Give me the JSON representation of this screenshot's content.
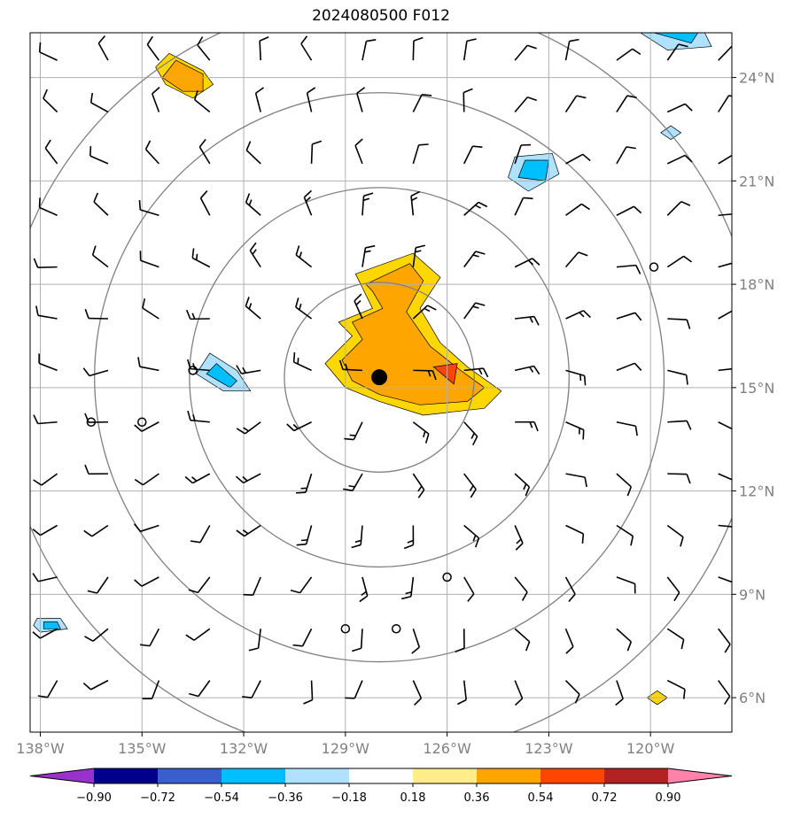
{
  "title": "2024080500 F012",
  "map": {
    "lon_range": [
      -138.3,
      -117.6
    ],
    "lat_range": [
      5.0,
      25.3
    ],
    "lon_ticks": [
      {
        "value": -138,
        "label": "138°W"
      },
      {
        "value": -135,
        "label": "135°W"
      },
      {
        "value": -132,
        "label": "132°W"
      },
      {
        "value": -129,
        "label": "129°W"
      },
      {
        "value": -126,
        "label": "126°W"
      },
      {
        "value": -123,
        "label": "123°W"
      },
      {
        "value": -120,
        "label": "120°W"
      }
    ],
    "lat_ticks": [
      {
        "value": 6,
        "label": "6°N"
      },
      {
        "value": 9,
        "label": "9°N"
      },
      {
        "value": 12,
        "label": "12°N"
      },
      {
        "value": 15,
        "label": "15°N"
      },
      {
        "value": 18,
        "label": "18°N"
      },
      {
        "value": 21,
        "label": "21°N"
      },
      {
        "value": 24,
        "label": "24°N"
      }
    ],
    "grid_color": "#b0b0b0",
    "range_ring_color": "#808080",
    "storm_center": {
      "lon": -128.0,
      "lat": 15.3
    },
    "range_rings_deg": [
      2.8,
      5.6,
      8.4,
      11.2
    ],
    "filled_regions": [
      {
        "level": 0.36,
        "color": "#ffd700",
        "points": [
          [
            -128.7,
            18.3
          ],
          [
            -127.0,
            18.9
          ],
          [
            -126.2,
            18.2
          ],
          [
            -126.8,
            17.3
          ],
          [
            -126.2,
            16.3
          ],
          [
            -125.4,
            15.6
          ],
          [
            -124.4,
            14.9
          ],
          [
            -124.9,
            14.4
          ],
          [
            -126.7,
            14.2
          ],
          [
            -128.0,
            14.6
          ],
          [
            -129.0,
            15.0
          ],
          [
            -129.6,
            15.7
          ],
          [
            -128.8,
            16.5
          ],
          [
            -129.2,
            16.9
          ],
          [
            -128.2,
            17.3
          ],
          [
            -128.5,
            17.9
          ]
        ]
      },
      {
        "level": 0.54,
        "color": "#ffa500",
        "points": [
          [
            -128.4,
            18.0
          ],
          [
            -127.1,
            18.6
          ],
          [
            -126.7,
            18.1
          ],
          [
            -127.2,
            17.2
          ],
          [
            -126.5,
            16.2
          ],
          [
            -125.6,
            15.5
          ],
          [
            -124.9,
            15.0
          ],
          [
            -125.4,
            14.6
          ],
          [
            -126.8,
            14.5
          ],
          [
            -128.0,
            14.8
          ],
          [
            -128.8,
            15.2
          ],
          [
            -129.1,
            15.8
          ],
          [
            -128.5,
            16.4
          ],
          [
            -128.8,
            16.9
          ],
          [
            -127.9,
            17.3
          ],
          [
            -128.2,
            17.8
          ]
        ]
      },
      {
        "level": 0.72,
        "color": "#ff4500",
        "points": [
          [
            -126.4,
            15.6
          ],
          [
            -125.7,
            15.7
          ],
          [
            -125.8,
            15.1
          ]
        ]
      },
      {
        "level": 0.36,
        "color": "#ffd700",
        "points": [
          [
            -134.2,
            24.7
          ],
          [
            -133.2,
            24.2
          ],
          [
            -132.9,
            23.8
          ],
          [
            -133.5,
            23.4
          ],
          [
            -134.3,
            23.8
          ],
          [
            -134.6,
            24.3
          ]
        ]
      },
      {
        "level": 0.54,
        "color": "#ffa500",
        "points": [
          [
            -134.0,
            24.5
          ],
          [
            -133.2,
            24.1
          ],
          [
            -133.2,
            23.6
          ],
          [
            -133.8,
            23.6
          ],
          [
            -134.4,
            24.0
          ]
        ]
      },
      {
        "level": 0.36,
        "color": "#ffd700",
        "points": [
          [
            -119.8,
            6.2
          ],
          [
            -119.5,
            6.0
          ],
          [
            -119.8,
            5.8
          ],
          [
            -120.1,
            6.0
          ]
        ]
      },
      {
        "level": -0.18,
        "color": "#b0e2ff",
        "points": [
          [
            -133.0,
            16.0
          ],
          [
            -132.2,
            15.5
          ],
          [
            -131.8,
            14.9
          ],
          [
            -132.6,
            14.9
          ],
          [
            -133.4,
            15.4
          ]
        ]
      },
      {
        "level": -0.36,
        "color": "#00bfff",
        "points": [
          [
            -132.8,
            15.7
          ],
          [
            -132.2,
            15.2
          ],
          [
            -132.4,
            15.0
          ],
          [
            -133.1,
            15.4
          ]
        ]
      },
      {
        "level": -0.18,
        "color": "#b0e2ff",
        "points": [
          [
            -124.0,
            21.7
          ],
          [
            -122.9,
            21.8
          ],
          [
            -122.7,
            21.2
          ],
          [
            -123.6,
            20.7
          ],
          [
            -124.2,
            21.1
          ]
        ]
      },
      {
        "level": -0.36,
        "color": "#00bfff",
        "points": [
          [
            -123.7,
            21.6
          ],
          [
            -123.0,
            21.6
          ],
          [
            -123.1,
            21.0
          ],
          [
            -123.9,
            21.1
          ]
        ]
      },
      {
        "level": -0.18,
        "color": "#b0e2ff",
        "points": [
          [
            -120.3,
            25.3
          ],
          [
            -118.4,
            25.3
          ],
          [
            -118.2,
            24.9
          ],
          [
            -119.5,
            24.8
          ]
        ]
      },
      {
        "level": -0.36,
        "color": "#00bfff",
        "points": [
          [
            -119.9,
            25.3
          ],
          [
            -118.6,
            25.3
          ],
          [
            -118.8,
            25.0
          ]
        ]
      },
      {
        "level": -0.18,
        "color": "#b0e2ff",
        "points": [
          [
            -119.4,
            22.6
          ],
          [
            -119.1,
            22.4
          ],
          [
            -119.4,
            22.2
          ],
          [
            -119.7,
            22.4
          ]
        ]
      },
      {
        "level": -0.18,
        "color": "#b0e2ff",
        "points": [
          [
            -138.1,
            8.3
          ],
          [
            -137.4,
            8.3
          ],
          [
            -137.2,
            8.0
          ],
          [
            -138.0,
            7.9
          ],
          [
            -138.2,
            8.1
          ]
        ]
      },
      {
        "level": -0.36,
        "color": "#00bfff",
        "points": [
          [
            -137.9,
            8.2
          ],
          [
            -137.5,
            8.2
          ],
          [
            -137.4,
            8.0
          ],
          [
            -137.9,
            8.0
          ]
        ]
      }
    ],
    "calm_points": [
      {
        "lon": -119.9,
        "lat": 18.5
      },
      {
        "lon": -133.5,
        "lat": 15.5
      },
      {
        "lon": -136.5,
        "lat": 14.0
      },
      {
        "lon": -135.0,
        "lat": 14.0
      },
      {
        "lon": -126.0,
        "lat": 9.5
      },
      {
        "lon": -129.0,
        "lat": 8.0
      },
      {
        "lon": -127.5,
        "lat": 8.0
      }
    ]
  },
  "colorbar": {
    "segments": [
      {
        "color": "#9932cc"
      },
      {
        "color": "#00008b"
      },
      {
        "color": "#3a5fcd"
      },
      {
        "color": "#00bfff"
      },
      {
        "color": "#b0e2ff"
      },
      {
        "color": "#ffffff"
      },
      {
        "color": "#ffec8b"
      },
      {
        "color": "#ffa500"
      },
      {
        "color": "#ff4500"
      },
      {
        "color": "#b22222"
      },
      {
        "color": "#ff82ab"
      }
    ],
    "tick_labels": [
      "−0.90",
      "−0.72",
      "−0.54",
      "−0.36",
      "−0.18",
      "0.18",
      "0.36",
      "0.54",
      "0.72",
      "0.90"
    ]
  }
}
